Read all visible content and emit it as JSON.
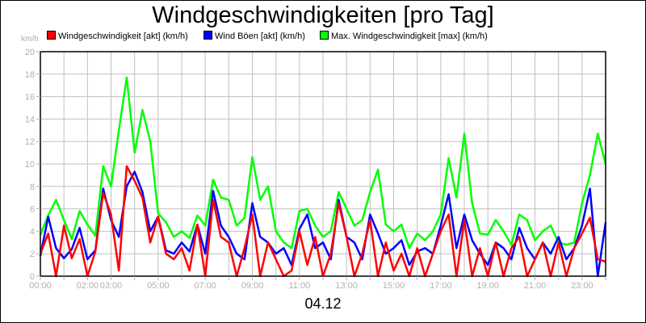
{
  "title": "Windgeschwindigkeiten [pro Tag]",
  "unit_label": "km/h",
  "date_label": "04.12",
  "legend": [
    {
      "label": "Windgeschwindigkeit [akt] (km/h)",
      "color": "#ff0000"
    },
    {
      "label": "Wind Böen [akt] (km/h)",
      "color": "#0000ff"
    },
    {
      "label": "Max. Windgeschwindigkeit [max] (km/h)",
      "color": "#00ff00"
    }
  ],
  "chart_data": {
    "type": "line",
    "title": "Windgeschwindigkeiten [pro Tag]",
    "xlabel": "04.12",
    "ylabel": "km/h",
    "ylim": [
      0,
      20
    ],
    "xlim_hours": [
      0,
      24
    ],
    "grid": true,
    "legend_position": "top",
    "y_ticks": [
      0,
      2,
      4,
      6,
      8,
      10,
      12,
      14,
      16,
      18,
      20
    ],
    "x_tick_labels": [
      {
        "hour": 0,
        "label": "00:00"
      },
      {
        "hour": 2,
        "label": "02:00"
      },
      {
        "hour": 3,
        "label": "03:00"
      },
      {
        "hour": 5,
        "label": "05:00"
      },
      {
        "hour": 7,
        "label": "07:00"
      },
      {
        "hour": 9,
        "label": "09:00"
      },
      {
        "hour": 11,
        "label": "11:00"
      },
      {
        "hour": 13,
        "label": "13:00"
      },
      {
        "hour": 15,
        "label": "15:00"
      },
      {
        "hour": 17,
        "label": "17:00"
      },
      {
        "hour": 19,
        "label": "19:00"
      },
      {
        "hour": 21,
        "label": "21:00"
      },
      {
        "hour": 23,
        "label": "23:00"
      }
    ],
    "x_step_minutes": 20,
    "series": [
      {
        "name": "Max. Windgeschwindigkeit [max] (km/h)",
        "color": "#00ff00",
        "values": [
          3.7,
          5.4,
          6.8,
          5.0,
          3.3,
          5.8,
          4.6,
          3.6,
          9.8,
          8.0,
          13.0,
          17.7,
          11.0,
          14.8,
          12.0,
          5.6,
          4.8,
          3.5,
          4.0,
          3.4,
          5.4,
          4.5,
          8.6,
          7.0,
          6.8,
          4.5,
          5.2,
          10.6,
          6.8,
          8.0,
          4.0,
          3.0,
          2.5,
          5.8,
          6.0,
          4.5,
          3.5,
          4.0,
          7.5,
          6.0,
          4.5,
          5.0,
          7.5,
          9.5,
          4.6,
          4.0,
          4.6,
          2.5,
          3.8,
          3.2,
          4.0,
          5.5,
          10.5,
          7.0,
          12.7,
          6.5,
          3.8,
          3.7,
          5.0,
          4.0,
          2.8,
          5.5,
          5.0,
          3.2,
          4.0,
          4.5,
          3.0,
          2.8,
          3.0,
          6.5,
          9.0,
          12.7,
          10.0
        ]
      },
      {
        "name": "Wind Böen [akt] (km/h)",
        "color": "#0000ff",
        "values": [
          1.8,
          5.3,
          2.5,
          1.6,
          2.4,
          4.3,
          1.5,
          2.3,
          7.8,
          5.0,
          3.5,
          8.0,
          9.3,
          7.5,
          4.0,
          5.3,
          2.3,
          2.0,
          3.0,
          2.2,
          4.6,
          2.0,
          7.6,
          4.5,
          3.5,
          2.0,
          1.5,
          6.5,
          3.5,
          3.0,
          2.0,
          2.5,
          1.0,
          4.2,
          5.5,
          2.5,
          3.0,
          1.5,
          6.8,
          3.5,
          3.0,
          1.5,
          5.5,
          3.8,
          2.0,
          2.5,
          3.2,
          1.0,
          2.2,
          2.5,
          2.0,
          4.5,
          7.3,
          2.5,
          5.5,
          3.2,
          2.0,
          1.0,
          3.0,
          2.5,
          1.5,
          4.3,
          2.5,
          1.5,
          3.0,
          2.0,
          3.5,
          1.5,
          2.5,
          4.5,
          7.8,
          0.0,
          4.8
        ]
      },
      {
        "name": "Windgeschwindigkeit [akt] (km/h)",
        "color": "#ff0000",
        "values": [
          2.0,
          3.8,
          0.0,
          4.5,
          1.6,
          3.3,
          0.0,
          2.2,
          7.4,
          5.5,
          0.5,
          9.8,
          8.5,
          7.0,
          3.0,
          5.3,
          2.0,
          1.5,
          2.5,
          0.5,
          4.6,
          0.0,
          6.8,
          3.5,
          3.0,
          0.0,
          2.5,
          5.5,
          0.0,
          3.0,
          1.5,
          0.0,
          0.5,
          4.0,
          1.0,
          3.5,
          0.0,
          2.0,
          6.5,
          3.5,
          0.0,
          2.0,
          5.0,
          0.0,
          3.0,
          0.5,
          2.0,
          0.0,
          2.5,
          0.0,
          2.0,
          4.0,
          5.5,
          0.0,
          5.0,
          0.0,
          2.5,
          0.0,
          3.0,
          0.0,
          2.5,
          3.5,
          0.0,
          1.5,
          3.0,
          0.0,
          3.0,
          0.0,
          2.5,
          3.8,
          5.2,
          1.5,
          1.3
        ]
      }
    ]
  }
}
